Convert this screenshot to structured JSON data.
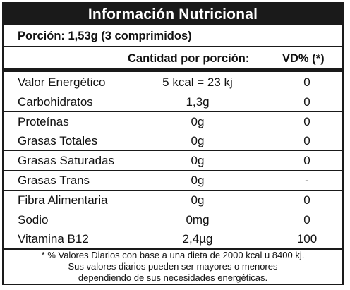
{
  "label": {
    "title": "Información Nutricional",
    "portion": "Porción: 1,53g (3 comprimidos)",
    "header": {
      "amount": "Cantidad por porción:",
      "vd": "VD% (*)"
    },
    "rows": [
      {
        "name": "Valor Energético",
        "amount": "5 kcal = 23 kj",
        "vd": "0"
      },
      {
        "name": "Carbohidratos",
        "amount": "1,3g",
        "vd": "0"
      },
      {
        "name": "Proteínas",
        "amount": "0g",
        "vd": "0"
      },
      {
        "name": "Grasas Totales",
        "amount": "0g",
        "vd": "0"
      },
      {
        "name": "Grasas Saturadas",
        "amount": "0g",
        "vd": "0"
      },
      {
        "name": "Grasas Trans",
        "amount": "0g",
        "vd": "-"
      },
      {
        "name": "Fibra Alimentaria",
        "amount": "0g",
        "vd": "0"
      },
      {
        "name": "Sodio",
        "amount": "0mg",
        "vd": "0"
      },
      {
        "name": "Vitamina B12",
        "amount": "2,4µg",
        "vd": "100"
      }
    ],
    "footnote": [
      "* % Valores Diarios con base a una dieta de 2000 kcal u 8400 kj.",
      "Sus valores diarios pueden ser mayores o menores",
      "dependiendo de sus necesidades energéticas."
    ]
  }
}
